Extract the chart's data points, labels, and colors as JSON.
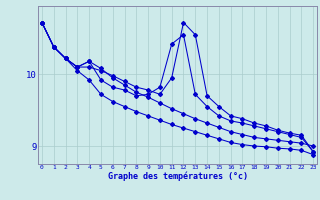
{
  "xlabel": "Graphe des températures (°c)",
  "bg_color": "#cdeaea",
  "line_color": "#0000cc",
  "grid_color": "#aacccc",
  "axis_color": "#8888aa",
  "text_color": "#0000cc",
  "xmin": 0,
  "xmax": 23,
  "ymin": 8.75,
  "ymax": 10.95,
  "yticks": [
    9,
    10
  ],
  "series": {
    "s1": [
      10.72,
      10.38,
      10.22,
      10.1,
      10.1,
      10.05,
      9.98,
      9.9,
      9.82,
      9.78,
      9.72,
      9.95,
      10.72,
      10.55,
      9.7,
      9.55,
      9.42,
      9.38,
      9.32,
      9.28,
      9.22,
      9.18,
      9.15,
      8.92
    ],
    "s2": [
      10.72,
      10.38,
      10.22,
      10.1,
      10.18,
      9.92,
      9.82,
      9.78,
      9.7,
      9.72,
      9.82,
      10.42,
      10.55,
      9.72,
      9.55,
      9.42,
      9.35,
      9.32,
      9.28,
      9.24,
      9.2,
      9.16,
      9.12,
      8.92
    ],
    "s3": [
      10.72,
      10.38,
      10.22,
      10.05,
      9.92,
      9.72,
      9.62,
      9.55,
      9.48,
      9.42,
      9.36,
      9.3,
      9.25,
      9.2,
      9.15,
      9.1,
      9.05,
      9.02,
      9.0,
      8.99,
      8.97,
      8.96,
      8.94,
      8.88
    ],
    "s4": [
      10.72,
      10.38,
      10.22,
      10.1,
      10.18,
      10.08,
      9.95,
      9.85,
      9.75,
      9.68,
      9.6,
      9.52,
      9.45,
      9.38,
      9.32,
      9.26,
      9.2,
      9.16,
      9.12,
      9.1,
      9.08,
      9.06,
      9.04,
      9.0
    ]
  }
}
